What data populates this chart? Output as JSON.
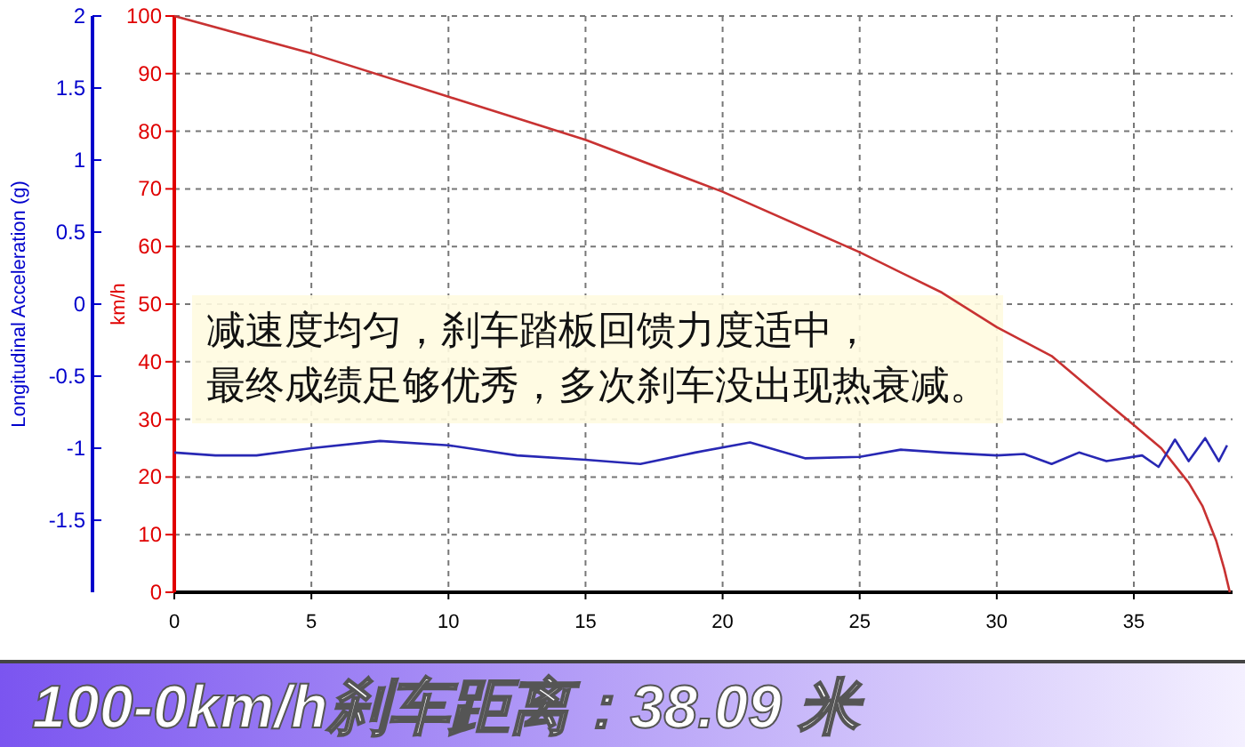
{
  "chart_data": {
    "type": "line",
    "title": "100-0km/h刹车距离：38.09 米",
    "ylabel": "km/h",
    "y2label": "Longitudinal Acceleration (g)",
    "annotations": [
      "减速度均匀，刹车踏板回馈力度适中，",
      "最终成绩足够优秀，多次刹车没出现热衰减。"
    ],
    "xlim": [
      0,
      38.6
    ],
    "xticks": [
      0,
      5,
      10,
      15,
      20,
      25,
      30,
      35
    ],
    "ylim": [
      0,
      100
    ],
    "yticks": [
      0,
      10,
      20,
      30,
      40,
      50,
      60,
      70,
      80,
      90,
      100
    ],
    "y2lim": [
      -2,
      2
    ],
    "y2ticks": [
      -1.5,
      -1,
      -0.5,
      0,
      0.5,
      1,
      1.5,
      2
    ],
    "grid": true,
    "series": [
      {
        "color": "#c83232",
        "x": [
          0,
          5,
          10,
          15,
          20,
          25,
          28,
          30,
          32,
          34,
          35,
          36,
          37,
          37.5,
          38,
          38.3,
          38.5
        ],
        "values": [
          100,
          93.5,
          86,
          78.5,
          69.5,
          59,
          52,
          46,
          41,
          33,
          29,
          25,
          19,
          15,
          9,
          4,
          0
        ]
      },
      {
        "color": "#2828b4",
        "axis": "y2",
        "x": [
          0,
          1.5,
          3,
          5,
          7.5,
          10,
          12.5,
          15,
          17,
          19,
          21,
          23,
          25,
          26.5,
          28,
          30,
          31,
          32,
          33,
          34,
          35.3,
          35.9,
          36.5,
          37,
          37.6,
          38.1,
          38.4
        ],
        "values": [
          -1.03,
          -1.05,
          -1.05,
          -1.0,
          -0.95,
          -0.98,
          -1.05,
          -1.08,
          -1.11,
          -1.03,
          -0.96,
          -1.07,
          -1.06,
          -1.01,
          -1.03,
          -1.05,
          -1.04,
          -1.11,
          -1.03,
          -1.09,
          -1.05,
          -1.13,
          -0.94,
          -1.09,
          -0.93,
          -1.09,
          -0.98
        ]
      }
    ]
  }
}
